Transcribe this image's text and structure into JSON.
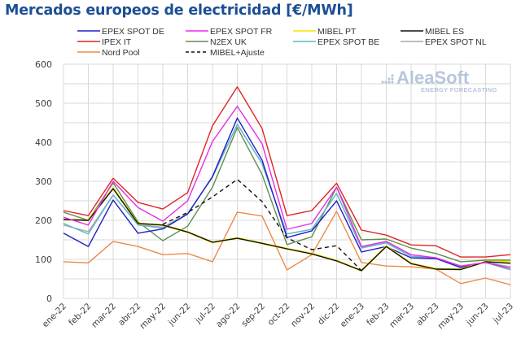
{
  "title": "Mercados europeos de electricidad [€/MWh]",
  "logo": {
    "name": "AleaSoft",
    "tagline": "ENERGY FORECASTING"
  },
  "chart_data": {
    "type": "line",
    "title": "Mercados europeos de electricidad [€/MWh]",
    "xlabel": "",
    "ylabel": "",
    "ylim": [
      0,
      600
    ],
    "yticks": [
      0,
      100,
      200,
      300,
      400,
      500,
      600
    ],
    "grid": true,
    "legend_position": "top",
    "x": [
      "ene-22",
      "feb-22",
      "mar-22",
      "abr-22",
      "may-22",
      "jun-22",
      "jul-22",
      "ago-22",
      "sep-22",
      "oct-22",
      "nov-22",
      "dic-22",
      "ene-23",
      "feb-23",
      "mar-23",
      "abr-23",
      "may-23",
      "jun-23",
      "jul-23"
    ],
    "series": [
      {
        "name": "EPEX SPOT DE",
        "color": "#1f1fc8",
        "dash": false,
        "values": [
          167,
          133,
          252,
          167,
          178,
          216,
          312,
          462,
          354,
          156,
          173,
          250,
          119,
          133,
          104,
          102,
          79,
          92,
          77
        ]
      },
      {
        "name": "EPEX SPOT FR",
        "color": "#e62ee6",
        "dash": false,
        "values": [
          208,
          188,
          300,
          233,
          198,
          250,
          402,
          492,
          396,
          177,
          192,
          285,
          133,
          146,
          112,
          104,
          83,
          92,
          77
        ]
      },
      {
        "name": "MIBEL PT",
        "color": "#f2e600",
        "dash": false,
        "values": [
          202,
          200,
          283,
          192,
          188,
          170,
          143,
          155,
          141,
          127,
          115,
          97,
          71,
          134,
          90,
          75,
          75,
          94,
          94
        ]
      },
      {
        "name": "MIBEL ES",
        "color": "#111111",
        "dash": false,
        "values": [
          202,
          200,
          281,
          192,
          188,
          170,
          144,
          154,
          141,
          127,
          114,
          96,
          71,
          133,
          89,
          75,
          74,
          94,
          90
        ]
      },
      {
        "name": "IPEX IT",
        "color": "#e02424",
        "dash": false,
        "values": [
          225,
          212,
          308,
          246,
          229,
          271,
          442,
          542,
          435,
          212,
          225,
          295,
          175,
          162,
          137,
          135,
          106,
          106,
          112
        ]
      },
      {
        "name": "N2EX UK",
        "color": "#5e8f4a",
        "dash": false,
        "values": [
          221,
          200,
          296,
          196,
          148,
          185,
          285,
          438,
          317,
          138,
          158,
          285,
          150,
          152,
          129,
          115,
          94,
          98,
          98
        ]
      },
      {
        "name": "EPEX SPOT BE",
        "color": "#5fb7cf",
        "dash": false,
        "values": [
          192,
          165,
          265,
          188,
          180,
          216,
          312,
          446,
          345,
          165,
          177,
          269,
          129,
          142,
          108,
          102,
          81,
          92,
          73
        ]
      },
      {
        "name": "EPEX SPOT NL",
        "color": "#a9a9a9",
        "dash": false,
        "values": [
          188,
          171,
          265,
          190,
          182,
          218,
          310,
          446,
          345,
          165,
          177,
          269,
          131,
          144,
          108,
          104,
          83,
          92,
          81
        ]
      },
      {
        "name": "Nord Pool",
        "color": "#ec8a4a",
        "dash": false,
        "values": [
          94,
          91,
          146,
          133,
          112,
          115,
          94,
          221,
          211,
          73,
          112,
          223,
          92,
          83,
          81,
          75,
          38,
          52,
          35
        ]
      },
      {
        "name": "MIBEL+Ajuste",
        "color": "#111111",
        "dash": true,
        "values": [
          null,
          null,
          null,
          null,
          190,
          220,
          260,
          305,
          248,
          155,
          125,
          135,
          71,
          null,
          null,
          null,
          null,
          null,
          null
        ]
      }
    ]
  }
}
